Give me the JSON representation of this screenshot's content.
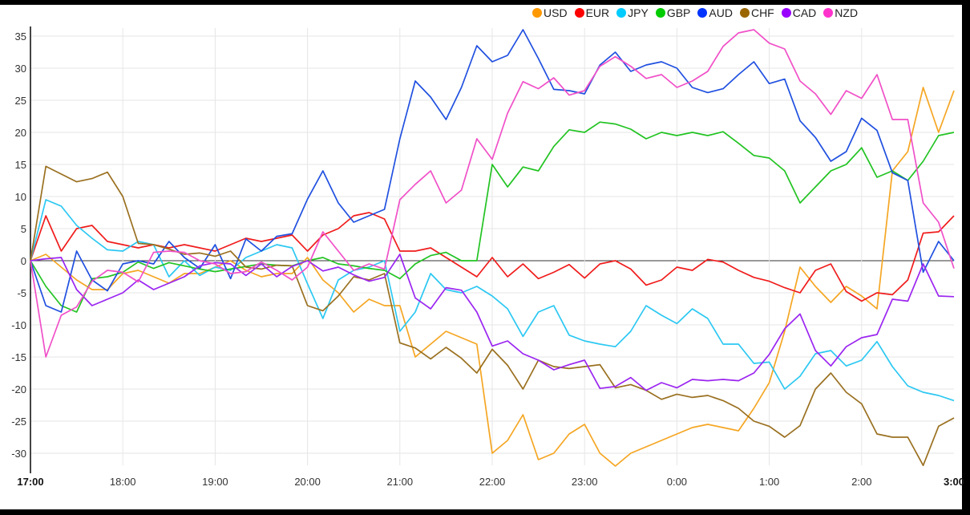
{
  "chart_data": {
    "type": "line",
    "title": "",
    "xlabel": "",
    "ylabel": "",
    "ylim": [
      -32,
      37
    ],
    "grid": true,
    "legend_position": "top-right",
    "y_ticks": [
      "35",
      "30",
      "25",
      "20",
      "15",
      "10",
      "5",
      "0",
      "-5",
      "-10",
      "-15",
      "-20",
      "-25",
      "-30"
    ],
    "x_ticks": [
      "17:00",
      "18:00",
      "19:00",
      "20:00",
      "21:00",
      "22:00",
      "23:00",
      "0:00",
      "1:00",
      "2:00",
      "3:00"
    ],
    "x": [
      "17:00",
      "17:10",
      "17:20",
      "17:30",
      "17:40",
      "17:50",
      "18:00",
      "18:10",
      "18:20",
      "18:30",
      "18:40",
      "18:50",
      "19:00",
      "19:10",
      "19:20",
      "19:30",
      "19:40",
      "19:50",
      "20:00",
      "20:10",
      "20:20",
      "20:30",
      "20:40",
      "20:50",
      "21:00",
      "21:10",
      "21:20",
      "21:30",
      "21:40",
      "21:50",
      "22:00",
      "22:10",
      "22:20",
      "22:30",
      "22:40",
      "22:50",
      "23:00",
      "23:10",
      "23:20",
      "23:30",
      "23:40",
      "23:50",
      "0:00",
      "0:10",
      "0:20",
      "0:30",
      "0:40",
      "0:50",
      "1:00",
      "1:10",
      "1:20",
      "1:30",
      "1:40",
      "1:50",
      "2:00",
      "2:10",
      "2:20",
      "2:30",
      "2:40",
      "2:50",
      "3:00"
    ],
    "series": [
      {
        "name": "USD",
        "color": "#f5a623",
        "legend_color": "#ff9900",
        "values": [
          0,
          1,
          -1,
          -3,
          -4.5,
          -4.5,
          -2,
          -1.5,
          -2.5,
          -3.5,
          -2,
          -2,
          -1,
          0,
          -1.5,
          -2.5,
          -2,
          -2,
          0.5,
          -3,
          -5,
          -8,
          -6,
          -7,
          -7,
          -15,
          -13,
          -11,
          -12,
          -13,
          -30,
          -28,
          -24,
          -31,
          -30,
          -27,
          -25.5,
          -30,
          -32,
          -30,
          -29,
          -28,
          -27,
          -26,
          -25.5,
          -26,
          -26.5,
          -23,
          -19,
          -11,
          -1,
          -4,
          -6.5,
          -4,
          -5.5,
          -7.5,
          14,
          17,
          27,
          20,
          26.5
        ]
      },
      {
        "name": "EUR",
        "color": "#f01c1c",
        "legend_color": "#ff0000",
        "values": [
          0,
          7,
          1.5,
          5,
          5.5,
          3,
          2.5,
          2,
          2.5,
          2,
          2.5,
          2,
          1.5,
          2.5,
          3.5,
          3,
          3.5,
          4,
          1.5,
          4,
          5,
          7,
          7.5,
          6.5,
          1.5,
          1.5,
          2,
          0.5,
          -1,
          -2.5,
          0.5,
          -2.5,
          -0.5,
          -2.8,
          -1.8,
          -0.6,
          -2.7,
          -0.5,
          0,
          -1.3,
          -3.8,
          -3,
          -1,
          -1.5,
          0.2,
          -0.2,
          -1.5,
          -2.6,
          -3.2,
          -4.2,
          -5,
          -1.5,
          -0.5,
          -4.8,
          -6.3,
          -5,
          -5.3,
          -3,
          4.3,
          4.5,
          7
        ]
      },
      {
        "name": "JPY",
        "color": "#2cc8f2",
        "legend_color": "#00ccff",
        "values": [
          0,
          9.5,
          8.5,
          5.5,
          3.5,
          1.7,
          1.5,
          3,
          2.5,
          -2.5,
          0,
          -2.3,
          -1,
          -1.5,
          0.5,
          1.5,
          2.5,
          2,
          -3.6,
          -9,
          -3,
          -1.5,
          -1,
          0,
          -11,
          -8,
          -2,
          -4.5,
          -5,
          -4,
          -5.5,
          -7.5,
          -11.8,
          -8,
          -7,
          -11.6,
          -12.5,
          -13,
          -13.4,
          -11,
          -7,
          -8.5,
          -9.8,
          -7.5,
          -9,
          -13,
          -13,
          -16,
          -15.8,
          -20,
          -18,
          -14.5,
          -14,
          -16.4,
          -15.5,
          -12.6,
          -16.5,
          -19.5,
          -20.5,
          -21,
          -21.8
        ]
      },
      {
        "name": "GBP",
        "color": "#22c322",
        "legend_color": "#00cc00",
        "values": [
          0,
          -4,
          -7,
          -8,
          -2.8,
          -2.5,
          -1.8,
          -0.2,
          -1.2,
          -0.3,
          -0.8,
          -1.3,
          -1.7,
          -1.3,
          -0.9,
          -0.5,
          -0.7,
          -0.8,
          0,
          0.5,
          -0.5,
          -0.8,
          -1.2,
          -1.5,
          -2.8,
          -0.5,
          0.8,
          1.3,
          0,
          0,
          15,
          11.5,
          14.6,
          14,
          17.8,
          20.4,
          20,
          21.6,
          21.3,
          20.5,
          19,
          20,
          19.5,
          20,
          19.5,
          20.1,
          18.3,
          16.4,
          16,
          14,
          9,
          11.5,
          14,
          15,
          17.6,
          13,
          14,
          12.5,
          15.5,
          19.5,
          20
        ]
      },
      {
        "name": "AUD",
        "color": "#2050e0",
        "legend_color": "#0033ff",
        "values": [
          0,
          -7,
          -8,
          1.5,
          -3,
          -4.7,
          -0.5,
          0,
          -0.5,
          3,
          0.5,
          -1.2,
          2.5,
          -2.8,
          3.4,
          1.5,
          3.8,
          4.2,
          9.6,
          14,
          9,
          6,
          7,
          8,
          19,
          28,
          25.5,
          22,
          27,
          33.5,
          31,
          32,
          36,
          31.5,
          26.7,
          26.5,
          26,
          30.5,
          32.5,
          29.5,
          30.5,
          31,
          30,
          27,
          26.2,
          26.8,
          29,
          31,
          27.6,
          28.3,
          21.8,
          19.2,
          15.5,
          17,
          22.2,
          20.3,
          13.7,
          12.5,
          -1.8,
          3,
          0
        ]
      },
      {
        "name": "CHF",
        "color": "#9a7020",
        "legend_color": "#996600",
        "values": [
          0,
          14.7,
          13.5,
          12.3,
          12.8,
          13.8,
          10,
          2.7,
          2.5,
          1.8,
          1,
          1.2,
          0.7,
          1.5,
          -1,
          -1.3,
          -0.7,
          -0.8,
          -7,
          -7.8,
          -5.5,
          -2.5,
          -3,
          -2,
          -12.8,
          -13.6,
          -15.3,
          -13.5,
          -15.2,
          -17.5,
          -13.8,
          -16.3,
          -20,
          -15.5,
          -16.5,
          -16.8,
          -16.5,
          -16.2,
          -19.8,
          -19.3,
          -20.2,
          -21.6,
          -20.8,
          -21.3,
          -21,
          -21.8,
          -23,
          -25,
          -25.8,
          -27.5,
          -25.7,
          -20,
          -17.5,
          -20.5,
          -22.3,
          -27,
          -27.5,
          -27.5,
          -31.9,
          -25.8,
          -24.5
        ]
      },
      {
        "name": "CAD",
        "color": "#9b25f0",
        "legend_color": "#9900ff",
        "values": [
          0,
          0.3,
          0.5,
          -4.5,
          -7,
          -6,
          -5,
          -3,
          -4.5,
          -3.5,
          -2.5,
          -0.8,
          -0.3,
          -0.5,
          -2.3,
          -0.5,
          -2.5,
          -0.9,
          0,
          -1.6,
          -1,
          -2.2,
          -3.2,
          -2.6,
          1,
          -5.8,
          -7.5,
          -4.2,
          -4.6,
          -8,
          -13.3,
          -12.5,
          -14.5,
          -15.5,
          -17,
          -16.2,
          -15.5,
          -19.9,
          -19.6,
          -18.2,
          -20.2,
          -19,
          -19.8,
          -18.5,
          -18.7,
          -18.5,
          -18.7,
          -17.5,
          -14.6,
          -10.6,
          -8.3,
          -14,
          -16.4,
          -13.4,
          -12,
          -11.5,
          -6,
          -6.3,
          -0.5,
          -5.5,
          -5.6
        ]
      },
      {
        "name": "NZD",
        "color": "#f050c8",
        "legend_color": "#ff33cc",
        "values": [
          0,
          -15,
          -8.5,
          -7.2,
          -3.2,
          -1.5,
          -1.8,
          -3.3,
          1.3,
          1.5,
          1.3,
          0,
          -0.5,
          -2,
          -1.7,
          -0.2,
          -1.5,
          -3,
          -1,
          4.5,
          1.5,
          -1.5,
          -0.5,
          -1.3,
          9.5,
          11.9,
          14,
          9,
          11,
          19,
          15.8,
          23,
          27.9,
          26.8,
          28.5,
          25.8,
          26.5,
          30.3,
          31.8,
          30.3,
          28.4,
          29,
          27,
          28,
          29.5,
          33.4,
          35.5,
          36,
          33.9,
          33,
          28,
          26,
          22.8,
          26.5,
          25.3,
          29,
          22,
          22,
          9,
          6,
          -1.2
        ]
      }
    ]
  }
}
